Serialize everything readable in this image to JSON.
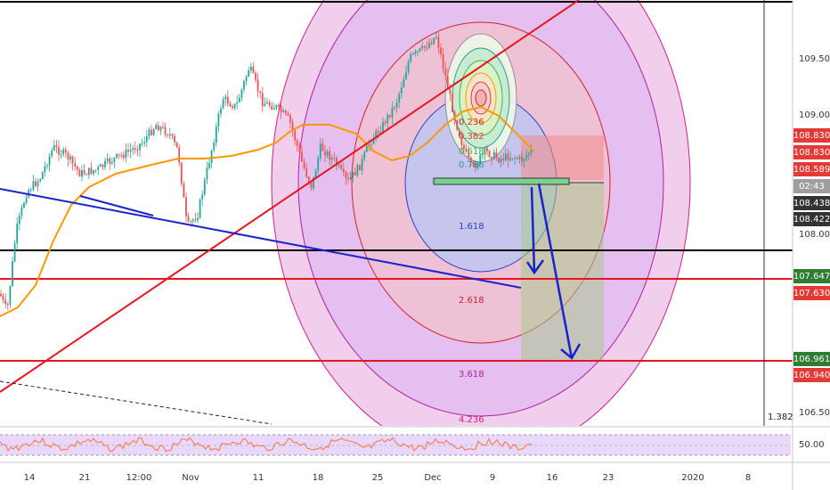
{
  "price_scale": {
    "ticks": [
      "109.500",
      "109.000",
      "108.000",
      "106.500"
    ],
    "rsi_tick": "50.00"
  },
  "price_tags": [
    {
      "id": "tag-108830-a",
      "text": "108.830",
      "bg": "#e53935"
    },
    {
      "id": "tag-108830-b",
      "text": "108.830",
      "bg": "#e53935"
    },
    {
      "id": "tag-108589",
      "text": "108.589",
      "bg": "#e53935"
    },
    {
      "id": "tag-countdown",
      "text": "02:43",
      "bg": "#9e9e9e"
    },
    {
      "id": "tag-108438",
      "text": "108.438",
      "bg": "#333333"
    },
    {
      "id": "tag-108422",
      "text": "108.422",
      "bg": "#333333"
    },
    {
      "id": "tag-107647",
      "text": "107.647",
      "bg": "#2e7d32"
    },
    {
      "id": "tag-107630",
      "text": "107.630",
      "bg": "#e53935"
    },
    {
      "id": "tag-106961",
      "text": "106.961",
      "bg": "#2e7d32"
    },
    {
      "id": "tag-106940",
      "text": "106.940",
      "bg": "#e53935"
    }
  ],
  "fib_ratio_label": "1.382",
  "fib_circle_labels": [
    "0.236",
    "0.382",
    "0.618",
    "0.786",
    "1.618",
    "2.618",
    "3.618",
    "4.236"
  ],
  "time_axis": [
    "14",
    "21",
    "12:00",
    "Nov",
    "11",
    "18",
    "25",
    "Dec",
    "9",
    "16",
    "23",
    "2020",
    "8"
  ],
  "colors": {
    "background": "#ffffff",
    "up_candle": "#26a69a",
    "down_candle": "#ef5350",
    "moving_average": "#ff9800",
    "trend_blue": "#1a23c9",
    "trend_red": "#e8141f",
    "rsi_band": "#e9d8fb"
  }
}
